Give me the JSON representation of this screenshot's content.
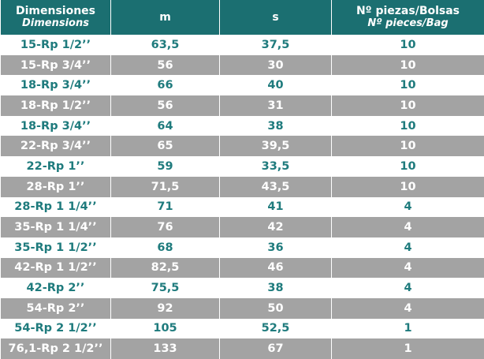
{
  "table": {
    "header": [
      {
        "title": "Dimensiones",
        "subtitle": "Dimensions"
      },
      {
        "title": "m"
      },
      {
        "title": "s"
      },
      {
        "title": "Nº piezas/Bolsas",
        "subtitle": "Nº pieces/Bag"
      }
    ],
    "rows": [
      [
        "15-Rp 1/2’’",
        "63,5",
        "37,5",
        "10"
      ],
      [
        "15-Rp 3/4’’",
        "56",
        "30",
        "10"
      ],
      [
        "18-Rp 3/4’’",
        "66",
        "40",
        "10"
      ],
      [
        "18-Rp 1/2’’",
        "56",
        "31",
        "10"
      ],
      [
        "18-Rp 3/4’’",
        "64",
        "38",
        "10"
      ],
      [
        "22-Rp 3/4’’",
        "65",
        "39,5",
        "10"
      ],
      [
        "22-Rp 1’’",
        "59",
        "33,5",
        "10"
      ],
      [
        "28-Rp 1’’",
        "71,5",
        "43,5",
        "10"
      ],
      [
        "28-Rp 1 1/4’’",
        "71",
        "41",
        "4"
      ],
      [
        "35-Rp 1 1/4’’",
        "76",
        "42",
        "4"
      ],
      [
        "35-Rp 1 1/2’’",
        "68",
        "36",
        "4"
      ],
      [
        "42-Rp 1 1/2’’",
        "82,5",
        "46",
        "4"
      ],
      [
        "42-Rp 2’’",
        "75,5",
        "38",
        "4"
      ],
      [
        "54-Rp 2’’",
        "92",
        "50",
        "4"
      ],
      [
        "54-Rp 2 1/2’’",
        "105",
        "52,5",
        "1"
      ],
      [
        "76,1-Rp 2 1/2’’",
        "133",
        "67",
        "1"
      ]
    ]
  }
}
